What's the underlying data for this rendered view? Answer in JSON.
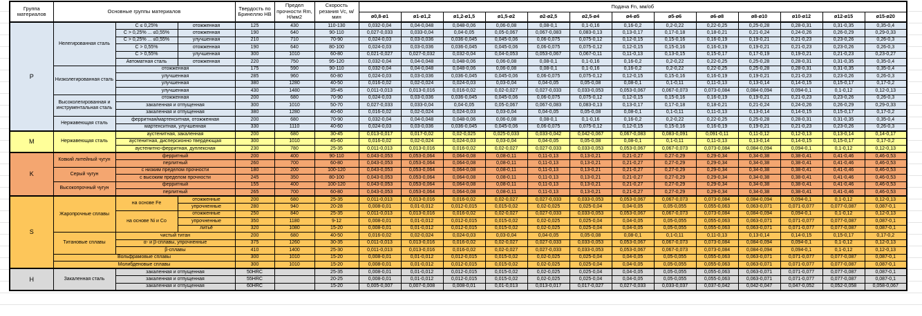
{
  "header": {
    "group": "Группа материалов",
    "main": "Основные группы материалов",
    "hardness": "Твердость по Бринеллю HB",
    "strength": "Предел прочности Rm, Н/мм2",
    "speed": "Скорость резания Vc, м/мин",
    "feed": "Подача Fn, мм/об",
    "diameters": [
      "ø0,8-ø1",
      "ø1-ø1,2",
      "ø1,2-ø1,5",
      "ø1,5-ø2",
      "ø2-ø2,5",
      "ø2,5-ø4",
      "ø4-ø5",
      "ø5-ø6",
      "ø6-ø8",
      "ø8-ø10",
      "ø10-ø12",
      "ø12-ø15",
      "ø15-ø20"
    ]
  },
  "feed_patterns": {
    "p1": [
      "0,032-0,04",
      "0,04-0,048",
      "0,048-0,06",
      "0,06-0,08",
      "0,08-0,1",
      "0,1-0,16",
      "0,16-0,2",
      "0,2-0,22",
      "0,22-0,25",
      "0,25-0,28",
      "0,28-0,31",
      "0,31-0,35",
      "0,35-0,4"
    ],
    "p2": [
      "0,027-0,033",
      "0,033-0,04",
      "0,04-0,05",
      "0,05-0,067",
      "0,067-0,083",
      "0,083-0,13",
      "0,13-0,17",
      "0,17-0,18",
      "0,18-0,21",
      "0,21-0,24",
      "0,24-0,26",
      "0,26-0,29",
      "0,29-0,33"
    ],
    "p3": [
      "0,024-0,03",
      "0,03-0,036",
      "0,036-0,045",
      "0,045-0,06",
      "0,06-0,075",
      "0,075-0,12",
      "0,12-0,15",
      "0,15-0,16",
      "0,16-0,19",
      "0,19-0,21",
      "0,21-0,23",
      "0,23-0,26",
      "0,26-0,3"
    ],
    "p4": [
      "0,021-0,027",
      "0,027-0,032",
      "0,032-0,04",
      "0,04-0,053",
      "0,053-0,067",
      "0,067-0,11",
      "0,11-0,13",
      "0,13-0,15",
      "0,15-0,17",
      "0,17-0,19",
      "0,19-0,21",
      "0,21-0,23",
      "0,23-0,27"
    ],
    "p5": [
      "0,016-0,02",
      "0,02-0,024",
      "0,024-0,03",
      "0,03-0,04",
      "0,04-0,05",
      "0,05-0,08",
      "0,08-0,1",
      "0,1-0,11",
      "0,11-0,13",
      "0,13-0,14",
      "0,14-0,15",
      "0,15-0,17",
      "0,17-0,2"
    ],
    "p6": [
      "0,011-0,013",
      "0,013-0,016",
      "0,016-0,02",
      "0,02-0,027",
      "0,027-0,033",
      "0,033-0,053",
      "0,053-0,067",
      "0,067-0,073",
      "0,073-0,084",
      "0,084-0,094",
      "0,094-0,1",
      "0,1-0,12",
      "0,12-0,13"
    ],
    "p7": [
      "0,013-0,017",
      "0,017-0,02",
      "0,02-0,025",
      "0,025-0,033",
      "0,033-0,042",
      "0,042-0,067",
      "0,067-0,083",
      "0,083-0,091",
      "0,091-0,11",
      "0,11-0,12",
      "0,12-0,13",
      "0,13-0,14",
      "0,14-0,17"
    ],
    "p8": [
      "0,043-0,053",
      "0,053-0,064",
      "0,064-0,08",
      "0,08-0,11",
      "0,11-0,13",
      "0,13-0,21",
      "0,21-0,27",
      "0,27-0,29",
      "0,29-0,34",
      "0,34-0,38",
      "0,38-0,41",
      "0,41-0,46",
      "0,46-0,53"
    ],
    "p9": [
      "0,008-0,01",
      "0,01-0,012",
      "0,012-0,015",
      "0,015-0,02",
      "0,02-0,025",
      "0,025-0,04",
      "0,04-0,05",
      "0,05-0,055",
      "0,055-0,063",
      "0,063-0,071",
      "0,071-0,077",
      "0,077-0,087",
      "0,087-0,1"
    ],
    "p10": [
      "0,005-0,007",
      "0,007-0,008",
      "0,008-0,01",
      "0,01-0,013",
      "0,013-0,017",
      "0,017-0,027",
      "0,027-0,033",
      "0,033-0,037",
      "0,037-0,042",
      "0,042-0,047",
      "0,047-0,052",
      "0,052-0,058",
      "0,058-0,067"
    ]
  },
  "groups": [
    {
      "letter": "P",
      "color": "#dce6f1",
      "rows": [
        {
          "cells": [
            {
              "t": "Нелегированная сталь",
              "rs": 6
            },
            {
              "t": "C ≤ 0,25%"
            },
            {
              "t": "отожженная"
            }
          ],
          "hb": "125",
          "rm": "430",
          "vc": "110-130",
          "f": "p1"
        },
        {
          "cells": [
            {
              "t": "C > 0,25% ... ≤0,55%"
            },
            {
              "t": "отожженная"
            }
          ],
          "hb": "190",
          "rm": "640",
          "vc": "90-110",
          "f": "p2"
        },
        {
          "cells": [
            {
              "t": "C > 0,25% ... ≤0,55%"
            },
            {
              "t": "улучшенная"
            }
          ],
          "hb": "210",
          "rm": "710",
          "vc": "70-90",
          "f": "p3"
        },
        {
          "cells": [
            {
              "t": "C > 0,55%"
            },
            {
              "t": "отожженная"
            }
          ],
          "hb": "190",
          "rm": "640",
          "vc": "80-100",
          "f": "p3"
        },
        {
          "cells": [
            {
              "t": "C > 0,55%"
            },
            {
              "t": "улучшенная"
            }
          ],
          "hb": "300",
          "rm": "1010",
          "vc": "60-80",
          "f": "p4"
        },
        {
          "cells": [
            {
              "t": "Автоматная сталь"
            },
            {
              "t": "отожженная"
            }
          ],
          "hb": "220",
          "rm": "750",
          "vc": "95-120",
          "f": "p1"
        },
        {
          "cells": [
            {
              "t": "Низколегированная сталь",
              "rs": 4
            },
            {
              "t": "отожженная",
              "cs": 2
            }
          ],
          "hb": "175",
          "rm": "590",
          "vc": "90-110",
          "f": "p1"
        },
        {
          "cells": [
            {
              "t": "улучшенная",
              "cs": 2
            }
          ],
          "hb": "285",
          "rm": "960",
          "vc": "60-80",
          "f": "p3"
        },
        {
          "cells": [
            {
              "t": "улучшенная",
              "cs": 2
            }
          ],
          "hb": "380",
          "rm": "1280",
          "vc": "40-50",
          "f": "p5"
        },
        {
          "cells": [
            {
              "t": "улучшенная",
              "cs": 2
            }
          ],
          "hb": "430",
          "rm": "1480",
          "vc": "35-45",
          "f": "p6"
        },
        {
          "cells": [
            {
              "t": "Высоколегированная и инструментальная сталь",
              "rs": 3
            },
            {
              "t": "отожженная",
              "cs": 2
            }
          ],
          "hb": "200",
          "rm": "680",
          "vc": "70-90",
          "f": "p3"
        },
        {
          "cells": [
            {
              "t": "закаленная и отпущенная",
              "cs": 2
            }
          ],
          "hb": "300",
          "rm": "1010",
          "vc": "50-70",
          "f": "p2"
        },
        {
          "cells": [
            {
              "t": "закаленная и отпущенная",
              "cs": 2
            }
          ],
          "hb": "380",
          "rm": "1280",
          "vc": "40-60",
          "f": "p5"
        },
        {
          "cells": [
            {
              "t": "Нержавеющая сталь",
              "rs": 2
            },
            {
              "t": "ферритная/мартенситная, отожженная",
              "cs": 2
            }
          ],
          "hb": "200",
          "rm": "680",
          "vc": "70-90",
          "f": "p1"
        },
        {
          "cells": [
            {
              "t": "мартенситная, улучшенная",
              "cs": 2
            }
          ],
          "hb": "330",
          "rm": "1110",
          "vc": "40-60",
          "f": "p3"
        }
      ]
    },
    {
      "letter": "M",
      "color": "#ffff99",
      "rows": [
        {
          "cells": [
            {
              "t": "Нержавеющая сталь",
              "rs": 3
            },
            {
              "t": "аустенитная, закаленная",
              "cs": 2
            }
          ],
          "hb": "200",
          "rm": "680",
          "vc": "30-45",
          "f": "p7"
        },
        {
          "cells": [
            {
              "t": "аустенитная, дисперсионно твердеющая",
              "cs": 2
            }
          ],
          "hb": "300",
          "rm": "1010",
          "vc": "45-60",
          "f": "p5"
        },
        {
          "cells": [
            {
              "t": "аустенитно-ферритная, дуплексная",
              "cs": 2
            }
          ],
          "hb": "230",
          "rm": "780",
          "vc": "25-35",
          "f": "p6"
        }
      ]
    },
    {
      "letter": "K",
      "color": "#f4a670",
      "rows": [
        {
          "cells": [
            {
              "t": "Ковкий литейный чугун",
              "rs": 2
            },
            {
              "t": "ферритный",
              "cs": 2
            }
          ],
          "hb": "200",
          "rm": "400",
          "vc": "90-110",
          "f": "p8"
        },
        {
          "cells": [
            {
              "t": "перлитный",
              "cs": 2
            }
          ],
          "hb": "260",
          "rm": "700",
          "vc": "60-80",
          "f": "p8"
        },
        {
          "cells": [
            {
              "t": "Серый чугун",
              "rs": 2
            },
            {
              "t": "с низким пределом прочности",
              "cs": 2
            }
          ],
          "hb": "180",
          "rm": "200",
          "vc": "100-120",
          "f": "p8"
        },
        {
          "cells": [
            {
              "t": "с высоким пределом прочности",
              "cs": 2
            }
          ],
          "hb": "245",
          "rm": "350",
          "vc": "80-100",
          "f": "p8"
        },
        {
          "cells": [
            {
              "t": "Высокопрочный чугун",
              "rs": 2
            },
            {
              "t": "ферритный",
              "cs": 2
            }
          ],
          "hb": "155",
          "rm": "400",
          "vc": "100-120",
          "f": "p8"
        },
        {
          "cells": [
            {
              "t": "перлитный",
              "cs": 2
            }
          ],
          "hb": "265",
          "rm": "700",
          "vc": "60-80",
          "f": "p8"
        }
      ]
    },
    {
      "letter": "S",
      "color": "#fdc65a",
      "rows": [
        {
          "cells": [
            {
              "t": "Жаропрочные сплавы",
              "rs": 5
            },
            {
              "t": "на основе Fe",
              "rs": 2
            },
            {
              "t": "отожженные"
            }
          ],
          "hb": "200",
          "rm": "680",
          "vc": "25-35",
          "f": "p6"
        },
        {
          "cells": [
            {
              "t": "упрочненные"
            }
          ],
          "hb": "280",
          "rm": "940",
          "vc": "20-28",
          "f": "p9"
        },
        {
          "cells": [
            {
              "t": "на основе Ni и Co",
              "rs": 3
            },
            {
              "t": "отожженные"
            }
          ],
          "hb": "250",
          "rm": "840",
          "vc": "25-35",
          "f": "p6"
        },
        {
          "cells": [
            {
              "t": "упрочненные"
            }
          ],
          "hb": "350",
          "rm": "1180",
          "vc": "9-12",
          "f": "p9"
        },
        {
          "cells": [
            {
              "t": "литьё"
            }
          ],
          "hb": "320",
          "rm": "1080",
          "vc": "15-20",
          "f": "p9"
        },
        {
          "cells": [
            {
              "t": "Титановые сплавы",
              "rs": 3
            },
            {
              "t": "чистый титан",
              "cs": 2
            }
          ],
          "hb": "200",
          "rm": "680",
          "vc": "40-50",
          "f": "p5"
        },
        {
          "cells": [
            {
              "t": "α- и β-сплавы, упрочненные",
              "cs": 2
            }
          ],
          "hb": "375",
          "rm": "1260",
          "vc": "30-35",
          "f": "p6"
        },
        {
          "cells": [
            {
              "t": "β-сплавы",
              "cs": 2
            }
          ],
          "hb": "410",
          "rm": "1400",
          "vc": "25-30",
          "f": "p6"
        },
        {
          "cells": [
            {
              "t": "Вольфрамовые сплавы",
              "cs": 3
            }
          ],
          "hb": "300",
          "rm": "1010",
          "vc": "15-20",
          "f": "p9"
        },
        {
          "cells": [
            {
              "t": "Молибденовые сплавы",
              "cs": 3
            }
          ],
          "hb": "300",
          "rm": "1010",
          "vc": "15-20",
          "f": "p9"
        }
      ]
    },
    {
      "letter": "H",
      "color": "#d9d9d9",
      "rows": [
        {
          "cells": [
            {
              "t": "Закаленная сталь",
              "rs": 3
            },
            {
              "t": "закаленная и отпущенная",
              "cs": 2
            }
          ],
          "hb": "50HRC",
          "rm": "",
          "vc": "25-35",
          "f": "p9"
        },
        {
          "cells": [
            {
              "t": "закаленная и отпущенная",
              "cs": 2
            }
          ],
          "hb": "55HRC",
          "rm": "",
          "vc": "20-25",
          "f": "p9"
        },
        {
          "cells": [
            {
              "t": "закаленная и отпущенная",
              "cs": 2
            }
          ],
          "hb": "60HRC",
          "rm": "",
          "vc": "15-20",
          "f": "p10"
        }
      ]
    }
  ]
}
